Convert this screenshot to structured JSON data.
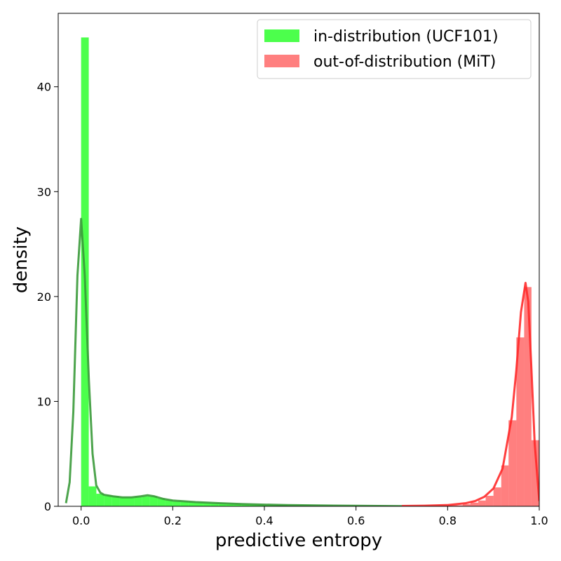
{
  "chart_data": {
    "type": "bar",
    "xlabel": "predictive entropy",
    "ylabel": "density",
    "xlim": [
      -0.05,
      1.0
    ],
    "ylim": [
      0,
      47
    ],
    "xticks": [
      0.0,
      0.2,
      0.4,
      0.6,
      0.8,
      1.0
    ],
    "xtick_labels": [
      "0.0",
      "0.2",
      "0.4",
      "0.6",
      "0.8",
      "1.0"
    ],
    "yticks": [
      0,
      10,
      20,
      30,
      40
    ],
    "ytick_labels": [
      "0",
      "10",
      "20",
      "30",
      "40"
    ],
    "legend_position": "top-right",
    "grid": false,
    "series": [
      {
        "name": "in-distribution (UCF101)",
        "color": "#00ff00",
        "hist_bins": [
          [
            0.0,
            0.0167,
            44.7
          ],
          [
            0.0167,
            0.0333,
            1.9
          ],
          [
            0.0333,
            0.05,
            1.2
          ],
          [
            0.05,
            0.0667,
            1.05
          ],
          [
            0.0667,
            0.0833,
            0.95
          ],
          [
            0.0833,
            0.1,
            0.85
          ],
          [
            0.1,
            0.1167,
            0.85
          ],
          [
            0.1167,
            0.1333,
            0.9
          ],
          [
            0.1333,
            0.15,
            0.95
          ],
          [
            0.15,
            0.1667,
            0.95
          ],
          [
            0.1667,
            0.1833,
            0.75
          ],
          [
            0.1833,
            0.2,
            0.6
          ],
          [
            0.2,
            0.2167,
            0.5
          ],
          [
            0.2167,
            0.2333,
            0.45
          ],
          [
            0.2333,
            0.25,
            0.4
          ],
          [
            0.25,
            0.2667,
            0.38
          ],
          [
            0.2667,
            0.2833,
            0.35
          ],
          [
            0.2833,
            0.3,
            0.3
          ],
          [
            0.3,
            0.3167,
            0.28
          ],
          [
            0.3167,
            0.3333,
            0.25
          ],
          [
            0.3333,
            0.35,
            0.22
          ],
          [
            0.35,
            0.3667,
            0.2
          ],
          [
            0.3667,
            0.3833,
            0.18
          ],
          [
            0.3833,
            0.4,
            0.16
          ],
          [
            0.4,
            0.45,
            0.14
          ],
          [
            0.45,
            0.5,
            0.11
          ],
          [
            0.5,
            0.55,
            0.08
          ],
          [
            0.55,
            0.6,
            0.06
          ],
          [
            0.6,
            0.65,
            0.04
          ],
          [
            0.65,
            0.7,
            0.03
          ]
        ],
        "density_curve": [
          [
            -0.033,
            0.3
          ],
          [
            -0.025,
            2.3
          ],
          [
            -0.017,
            9.0
          ],
          [
            -0.008,
            22.0
          ],
          [
            0.0,
            27.4
          ],
          [
            0.008,
            22.0
          ],
          [
            0.017,
            12.0
          ],
          [
            0.025,
            5.0
          ],
          [
            0.033,
            2.0
          ],
          [
            0.042,
            1.3
          ],
          [
            0.05,
            1.1
          ],
          [
            0.07,
            0.95
          ],
          [
            0.09,
            0.85
          ],
          [
            0.11,
            0.85
          ],
          [
            0.13,
            0.95
          ],
          [
            0.145,
            1.05
          ],
          [
            0.16,
            0.95
          ],
          [
            0.18,
            0.7
          ],
          [
            0.2,
            0.55
          ],
          [
            0.25,
            0.4
          ],
          [
            0.3,
            0.3
          ],
          [
            0.35,
            0.22
          ],
          [
            0.4,
            0.16
          ],
          [
            0.45,
            0.12
          ],
          [
            0.5,
            0.09
          ],
          [
            0.55,
            0.07
          ],
          [
            0.6,
            0.05
          ],
          [
            0.65,
            0.03
          ],
          [
            0.7,
            0.02
          ]
        ]
      },
      {
        "name": "out-of-distribution (MiT)",
        "color": "#ff0000",
        "hist_bins": [
          [
            0.7,
            0.75,
            0.03
          ],
          [
            0.75,
            0.8,
            0.06
          ],
          [
            0.8,
            0.833,
            0.1
          ],
          [
            0.833,
            0.85,
            0.2
          ],
          [
            0.85,
            0.867,
            0.35
          ],
          [
            0.867,
            0.883,
            0.55
          ],
          [
            0.883,
            0.9,
            1.0
          ],
          [
            0.9,
            0.917,
            1.8
          ],
          [
            0.917,
            0.933,
            3.9
          ],
          [
            0.933,
            0.95,
            8.2
          ],
          [
            0.95,
            0.967,
            16.1
          ],
          [
            0.967,
            0.983,
            20.9
          ],
          [
            0.983,
            1.0,
            6.3
          ]
        ],
        "density_curve": [
          [
            0.7,
            0.03
          ],
          [
            0.75,
            0.06
          ],
          [
            0.8,
            0.12
          ],
          [
            0.84,
            0.3
          ],
          [
            0.86,
            0.5
          ],
          [
            0.88,
            0.9
          ],
          [
            0.9,
            1.7
          ],
          [
            0.92,
            3.6
          ],
          [
            0.94,
            8.5
          ],
          [
            0.95,
            13.0
          ],
          [
            0.96,
            18.5
          ],
          [
            0.97,
            21.3
          ],
          [
            0.976,
            19.5
          ],
          [
            0.983,
            13.0
          ],
          [
            0.99,
            6.0
          ],
          [
            1.0,
            0.5
          ]
        ]
      }
    ]
  }
}
